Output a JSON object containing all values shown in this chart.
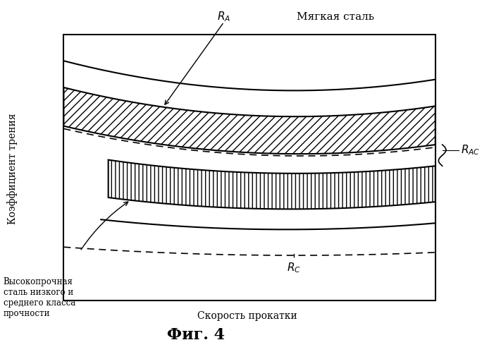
{
  "xlabel": "Скорость прокатки",
  "ylabel": "Коэффициент трения",
  "fig_caption": "Фиг. 4",
  "label_soft_steel": "Мягкая сталь",
  "label_hard_steel": "Высокопрочная\nсталь низкого и\nсреднего класса\nпрочности",
  "bg_color": "#ffffff",
  "line_color": "#000000"
}
